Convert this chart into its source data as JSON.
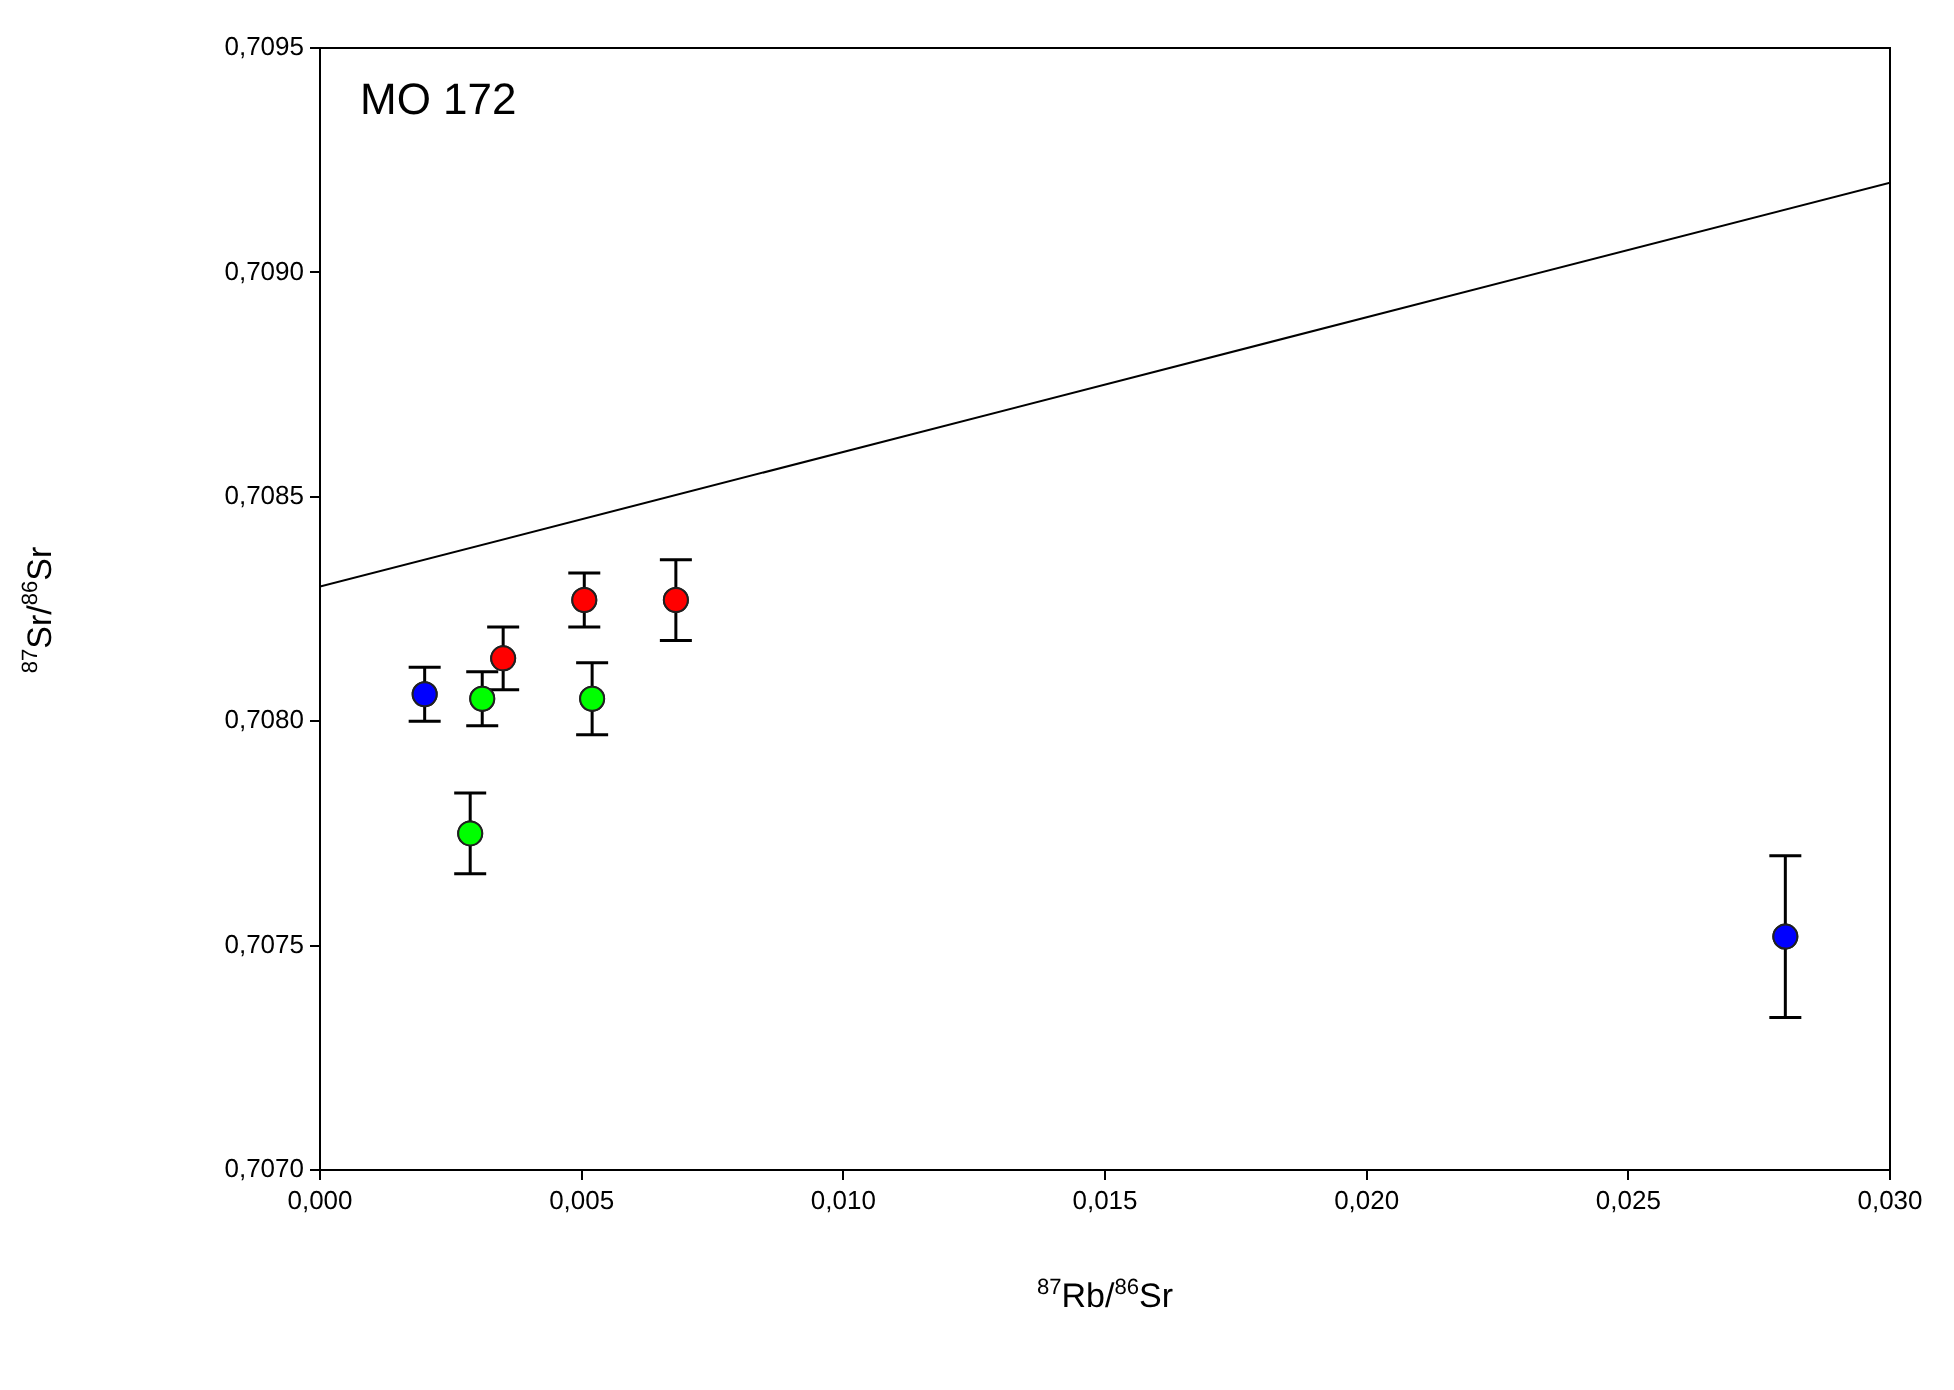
{
  "chart_data": {
    "type": "scatter",
    "xlabel": "$^{87}$Rb/$^{86}$Sr",
    "ylabel": "$^{87}$Sr/$^{86}$Sr",
    "annotations": [
      "MO 172"
    ],
    "xlim": [
      0,
      0.03
    ],
    "ylim": [
      0.707,
      0.7095
    ],
    "xticks": [
      {
        "value": 0,
        "label": "0,000"
      },
      {
        "value": 0.005,
        "label": "0,005"
      },
      {
        "value": 0.01,
        "label": "0,010"
      },
      {
        "value": 0.015,
        "label": "0,015"
      },
      {
        "value": 0.02,
        "label": "0,020"
      },
      {
        "value": 0.025,
        "label": "0,025"
      },
      {
        "value": 0.03,
        "label": "0,030"
      }
    ],
    "yticks": [
      {
        "value": 0.707,
        "label": "0,7070"
      },
      {
        "value": 0.7075,
        "label": "0,7075"
      },
      {
        "value": 0.708,
        "label": "0,7080"
      },
      {
        "value": 0.7085,
        "label": "0,7085"
      },
      {
        "value": 0.709,
        "label": "0,7090"
      },
      {
        "value": 0.7095,
        "label": "0,7095"
      }
    ],
    "grid": false,
    "legend": false,
    "marker": "circle",
    "series": [
      {
        "type": "line",
        "color": "#000000",
        "x": [
          0,
          0.03
        ],
        "values": [
          0.7083,
          0.7092
        ],
        "marker": "none"
      },
      {
        "color": "#0000ff",
        "x": [
          0.002,
          0.028
        ],
        "values": [
          0.70806,
          0.70752
        ],
        "errors": [
          6e-05,
          0.00018
        ]
      },
      {
        "color": "#ff0000",
        "x": [
          0.0035,
          0.00505,
          0.0068
        ],
        "values": [
          0.70814,
          0.70827,
          0.70827
        ],
        "errors": [
          7e-05,
          6e-05,
          9e-05
        ]
      },
      {
        "color": "#00ff00",
        "x": [
          0.0031,
          0.00287,
          0.0052
        ],
        "values": [
          0.70805,
          0.70775,
          0.70805
        ],
        "errors": [
          6e-05,
          9e-05,
          8e-05
        ]
      }
    ]
  }
}
